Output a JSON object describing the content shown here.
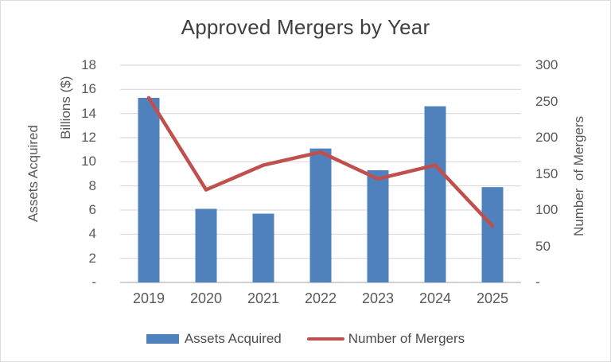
{
  "chart_data": {
    "type": "bar",
    "subtype": "combo-bar-line-dual-axis",
    "title": "Approved Mergers by Year",
    "categories": [
      "2019",
      "2020",
      "2021",
      "2022",
      "2023",
      "2024",
      "2025"
    ],
    "series": [
      {
        "name": "Assets Acquired",
        "chart_type": "bar",
        "axis": "left",
        "color": "#4F81BD",
        "values": [
          15.3,
          6.1,
          5.7,
          11.1,
          9.3,
          14.6,
          7.9
        ]
      },
      {
        "name": "Number of Mergers",
        "chart_type": "line",
        "axis": "right",
        "color": "#C0504D",
        "values": [
          255,
          128,
          162,
          180,
          143,
          162,
          78
        ]
      }
    ],
    "left_axis": {
      "title_outer": "Assets Acquired",
      "title_inner": "Billions ($)",
      "range": [
        0,
        18
      ],
      "tick_values": [
        18,
        16,
        14,
        12,
        10,
        8,
        6,
        4,
        2,
        0
      ],
      "tick_labels": [
        "18",
        "16",
        "14",
        "12",
        "10",
        "8",
        "6",
        "4",
        "2",
        "-"
      ]
    },
    "right_axis": {
      "title": "Number  of Mergers",
      "range": [
        0,
        300
      ],
      "tick_values": [
        300,
        250,
        200,
        150,
        100,
        50,
        0
      ],
      "tick_labels": [
        "300",
        "250",
        "200",
        "150",
        "100",
        "50",
        "-"
      ]
    },
    "xlabel": "",
    "grid": true,
    "legend_position": "bottom",
    "legend": {
      "bar_label": "Assets Acquired",
      "line_label": "Number of Mergers"
    },
    "palette": {
      "bar_fill": "#4F81BD",
      "line_stroke": "#C0504D",
      "gridline": "#D9D9D9",
      "axis_line": "#C0C0C0",
      "tick_text": "#595959",
      "title_text": "#3F3F3F",
      "legend_text": "#4D4D4D"
    }
  }
}
